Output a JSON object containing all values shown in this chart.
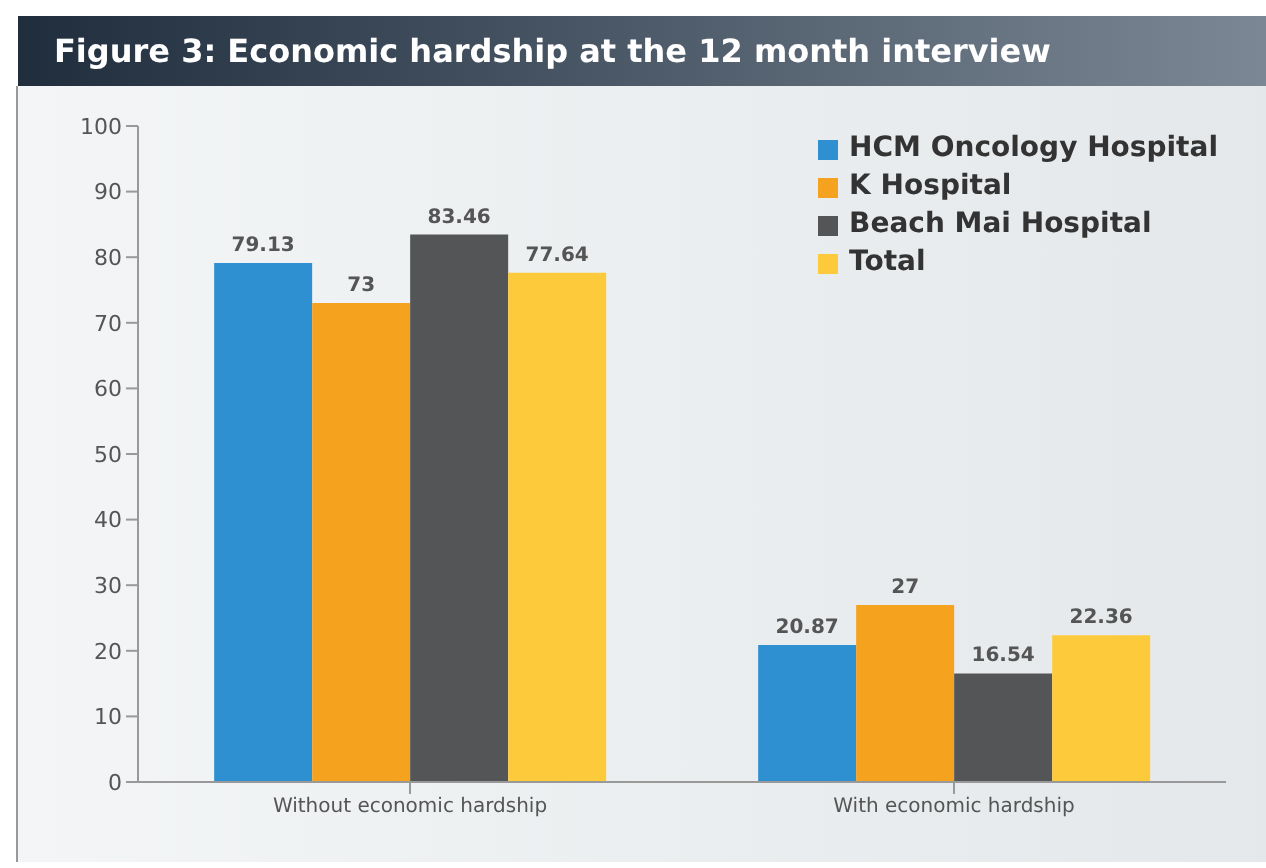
{
  "chart_data": {
    "type": "bar",
    "title": "Figure 3: Economic hardship at the 12 month interview",
    "categories": [
      "Without economic hardship",
      "With economic hardship"
    ],
    "series": [
      {
        "name": "HCM Oncology Hospital",
        "color": "#2e90d1",
        "values": [
          79.13,
          20.87
        ]
      },
      {
        "name": "K Hospital",
        "color": "#f5a21f",
        "values": [
          73,
          27
        ]
      },
      {
        "name": "Beach Mai Hospital",
        "color": "#545557",
        "values": [
          83.46,
          16.54
        ]
      },
      {
        "name": "Total",
        "color": "#fdca3c",
        "values": [
          77.64,
          22.36
        ]
      }
    ],
    "ylim": [
      0,
      100
    ],
    "yticks": [
      0,
      10,
      20,
      30,
      40,
      50,
      60,
      70,
      80,
      90,
      100
    ],
    "grid": false,
    "legend": "top right",
    "data_labels": true
  }
}
